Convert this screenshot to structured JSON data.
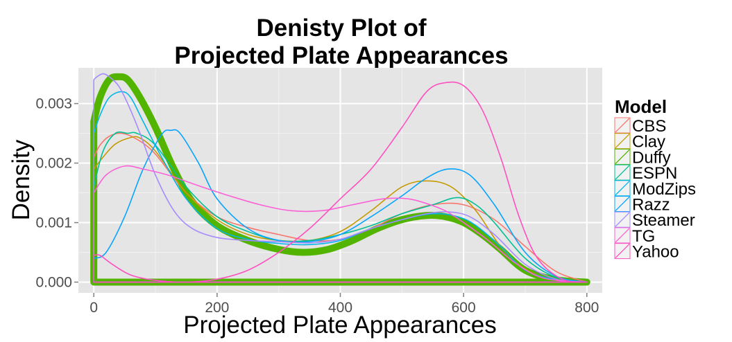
{
  "chart_data": {
    "type": "area",
    "title_line1": "Denisty Plot of",
    "title_line2": "Projected Plate Appearances",
    "xlabel": "Projected Plate Appearances",
    "ylabel": "Density",
    "xlim": [
      -25,
      825
    ],
    "ylim": [
      -0.00018,
      0.0036
    ],
    "x_ticks": [
      0,
      200,
      400,
      600,
      800
    ],
    "x_tick_labels": [
      "0",
      "200",
      "400",
      "600",
      "800"
    ],
    "y_ticks": [
      0.0,
      0.001,
      0.002,
      0.003
    ],
    "y_tick_labels": [
      "0.000",
      "0.001",
      "0.002",
      "0.003"
    ],
    "grid": true,
    "legend_title": "Model",
    "legend_position": "right",
    "series": [
      {
        "name": "CBS",
        "color": "#F8766D",
        "width": 1.6,
        "x": [
          0,
          10,
          25,
          45,
          70,
          100,
          150,
          200,
          250,
          300,
          350,
          400,
          450,
          500,
          550,
          600,
          650,
          700,
          750,
          800
        ],
        "y": [
          0.0021,
          0.0023,
          0.00245,
          0.0025,
          0.0024,
          0.00215,
          0.0015,
          0.0011,
          0.00092,
          0.0008,
          0.0007,
          0.00072,
          0.0009,
          0.00115,
          0.0013,
          0.0013,
          0.00105,
          0.0006,
          0.00018,
          0.0
        ]
      },
      {
        "name": "Clay",
        "color": "#C49A00",
        "width": 1.6,
        "x": [
          0,
          15,
          35,
          60,
          75,
          100,
          150,
          200,
          250,
          300,
          350,
          400,
          450,
          500,
          540,
          580,
          620,
          660,
          700,
          750,
          800
        ],
        "y": [
          0.0019,
          0.0021,
          0.00232,
          0.00243,
          0.00242,
          0.0022,
          0.0015,
          0.00105,
          0.0008,
          0.0007,
          0.0007,
          0.00085,
          0.0012,
          0.0016,
          0.0017,
          0.0016,
          0.0012,
          0.0006,
          0.00022,
          3e-05,
          0.0
        ]
      },
      {
        "name": "Duffy",
        "color": "#53B400",
        "width": 10,
        "x": [
          0,
          10,
          25,
          40,
          55,
          75,
          100,
          130,
          160,
          200,
          250,
          300,
          340,
          380,
          420,
          460,
          500,
          540,
          570,
          600,
          630,
          660,
          700,
          750,
          800
        ],
        "y": [
          0.0027,
          0.0031,
          0.0034,
          0.00345,
          0.0034,
          0.0031,
          0.0026,
          0.0019,
          0.00135,
          0.00095,
          0.0007,
          0.00055,
          0.0005,
          0.00055,
          0.0007,
          0.0009,
          0.00105,
          0.00112,
          0.0011,
          0.001,
          0.0008,
          0.00055,
          0.0002,
          4e-05,
          0.0
        ]
      },
      {
        "name": "ESPN",
        "color": "#00C094",
        "width": 1.6,
        "x": [
          0,
          15,
          35,
          55,
          70,
          100,
          150,
          200,
          250,
          300,
          350,
          400,
          450,
          500,
          550,
          590,
          620,
          650,
          700,
          750,
          800
        ],
        "y": [
          0.0016,
          0.0022,
          0.0025,
          0.0025,
          0.0025,
          0.0023,
          0.0016,
          0.0011,
          0.00085,
          0.0007,
          0.0007,
          0.0008,
          0.00095,
          0.00115,
          0.0013,
          0.00142,
          0.0013,
          0.001,
          0.0004,
          8e-05,
          0.0
        ]
      },
      {
        "name": "ModZips",
        "color": "#00B6EB",
        "width": 1.6,
        "x": [
          0,
          10,
          25,
          45,
          60,
          80,
          110,
          150,
          200,
          250,
          300,
          350,
          400,
          450,
          500,
          550,
          590,
          620,
          660,
          700,
          750,
          800
        ],
        "y": [
          0.0025,
          0.0028,
          0.0031,
          0.0032,
          0.0031,
          0.0027,
          0.0021,
          0.0014,
          0.0009,
          0.00072,
          0.00065,
          0.00063,
          0.0007,
          0.0009,
          0.00105,
          0.00115,
          0.0011,
          0.00095,
          0.0006,
          0.0002,
          4e-05,
          0.0
        ]
      },
      {
        "name": "Razz",
        "color": "#06A4FF",
        "width": 1.6,
        "x": [
          0,
          20,
          50,
          80,
          110,
          125,
          140,
          170,
          200,
          250,
          300,
          350,
          400,
          450,
          500,
          540,
          575,
          610,
          650,
          700,
          750,
          800
        ],
        "y": [
          0.0004,
          0.0005,
          0.0011,
          0.0019,
          0.00248,
          0.00255,
          0.0025,
          0.002,
          0.0014,
          0.0009,
          0.0007,
          0.00068,
          0.0008,
          0.0011,
          0.00145,
          0.00175,
          0.0019,
          0.0018,
          0.0013,
          0.0005,
          0.0001,
          0.0
        ]
      },
      {
        "name": "Steamer",
        "color": "#A58AFF",
        "width": 1.6,
        "x": [
          0,
          5,
          15,
          25,
          40,
          55,
          75,
          100,
          130,
          160,
          200,
          250,
          300,
          350,
          400,
          450,
          500,
          540,
          575,
          610,
          650,
          700,
          750,
          800
        ],
        "y": [
          0.0034,
          0.00345,
          0.0035,
          0.00345,
          0.0033,
          0.003,
          0.0025,
          0.0018,
          0.0012,
          0.0009,
          0.00075,
          0.0007,
          0.00068,
          0.00066,
          0.00072,
          0.0009,
          0.00105,
          0.00115,
          0.00118,
          0.0011,
          0.0008,
          0.0003,
          5e-05,
          0.0
        ]
      },
      {
        "name": "TG",
        "color": "#FB61D7",
        "width": 1.6,
        "x": [
          0,
          20,
          50,
          80,
          120,
          170,
          220,
          270,
          320,
          370,
          420,
          470,
          510,
          540,
          570,
          600,
          640,
          680,
          720,
          760,
          800
        ],
        "y": [
          0.0015,
          0.0018,
          0.00195,
          0.0019,
          0.0018,
          0.00162,
          0.00145,
          0.0013,
          0.0012,
          0.0012,
          0.0013,
          0.0014,
          0.0014,
          0.00132,
          0.0012,
          0.001,
          0.0007,
          0.00035,
          0.0001,
          2e-05,
          0.0
        ]
      },
      {
        "name": "Yahoo",
        "color": "#FF4FC0",
        "width": 1.6,
        "x": [
          0,
          10,
          30,
          60,
          100,
          150,
          200,
          250,
          300,
          350,
          400,
          450,
          500,
          540,
          570,
          600,
          630,
          660,
          690,
          720,
          760,
          800
        ],
        "y": [
          0.00045,
          0.00045,
          0.0003,
          0.00012,
          3e-05,
          0.0,
          5e-05,
          0.0002,
          0.0005,
          0.0009,
          0.0014,
          0.0019,
          0.0026,
          0.0032,
          0.00335,
          0.0033,
          0.0029,
          0.0021,
          0.0011,
          0.0004,
          5e-05,
          0.0
        ]
      }
    ]
  }
}
